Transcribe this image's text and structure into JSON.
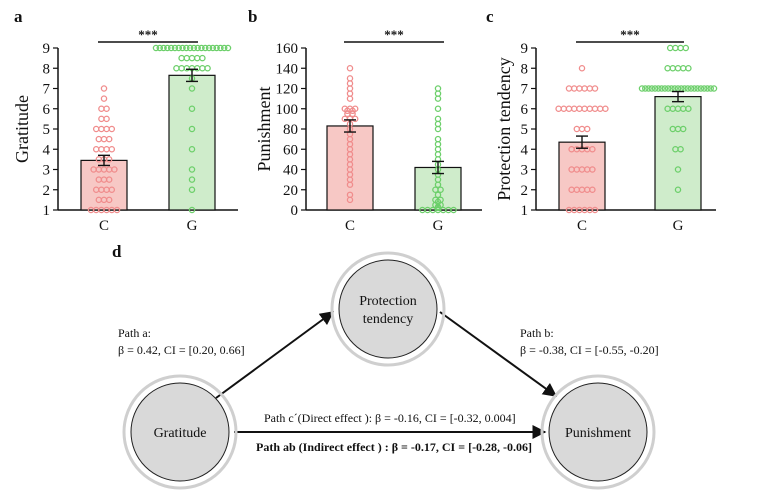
{
  "colors": {
    "c_fill": "#f7c8c5",
    "c_dot": "#f08c8c",
    "g_fill": "#cfeccb",
    "g_dot": "#6ccf6a",
    "node_fill": "#d9d9d9",
    "node_ring": "#cfcfcf"
  },
  "chart_data": [
    {
      "panel": "a",
      "type": "bar",
      "categories": [
        "C",
        "G"
      ],
      "values": [
        3.45,
        7.65
      ],
      "errors": [
        0.25,
        0.3
      ],
      "ylabel": "Gratitude",
      "ylim": [
        1,
        9
      ],
      "yticks": [
        "1",
        "2",
        "3",
        "4",
        "5",
        "6",
        "7",
        "8",
        "9"
      ],
      "significance": "***",
      "points": [
        [
          1,
          1,
          1,
          1,
          1,
          1,
          1.5,
          1.5,
          1.5,
          2,
          2,
          2,
          2,
          2.5,
          2.5,
          2.5,
          3,
          3,
          3,
          3,
          3,
          3.5,
          3.5,
          3.5,
          4,
          4,
          4,
          4,
          4.5,
          4.5,
          4.5,
          5,
          5,
          5,
          5,
          5.5,
          5.5,
          6,
          6,
          6.5,
          7
        ],
        [
          1,
          2,
          2.5,
          3,
          4,
          5,
          6,
          7,
          7.5,
          8,
          8,
          8,
          8,
          8,
          8,
          8,
          8.5,
          8.5,
          8.5,
          8.5,
          8.5,
          9,
          9,
          9,
          9,
          9,
          9,
          9,
          9,
          9,
          9,
          9,
          9,
          9,
          9,
          9,
          9,
          9,
          9,
          9,
          9
        ]
      ]
    },
    {
      "panel": "b",
      "type": "bar",
      "categories": [
        "C",
        "G"
      ],
      "values": [
        83,
        42
      ],
      "errors": [
        6,
        6
      ],
      "ylabel": "Punishment",
      "ylim": [
        0,
        160
      ],
      "yticks": [
        "0",
        "20",
        "40",
        "60",
        "80",
        "100",
        "120",
        "140",
        "160"
      ],
      "significance": "***",
      "points": [
        [
          10,
          15,
          25,
          30,
          35,
          40,
          45,
          50,
          55,
          60,
          65,
          70,
          75,
          80,
          85,
          90,
          90,
          90,
          95,
          95,
          98,
          98,
          100,
          100,
          100,
          110,
          115,
          120,
          125,
          130,
          140
        ],
        [
          0,
          0,
          0,
          0,
          0,
          0,
          0,
          2,
          3,
          5,
          5,
          8,
          10,
          10,
          15,
          20,
          20,
          25,
          30,
          35,
          40,
          45,
          50,
          55,
          60,
          65,
          70,
          80,
          85,
          90,
          100,
          110,
          115,
          120
        ]
      ]
    },
    {
      "panel": "c",
      "type": "bar",
      "categories": [
        "C",
        "G"
      ],
      "values": [
        4.35,
        6.6
      ],
      "errors": [
        0.3,
        0.25
      ],
      "ylabel": "Protection tendency",
      "ylim": [
        1,
        9
      ],
      "yticks": [
        "1",
        "2",
        "3",
        "4",
        "5",
        "6",
        "7",
        "8",
        "9"
      ],
      "significance": "***",
      "points": [
        [
          1,
          1,
          1,
          1,
          1,
          1,
          2,
          2,
          2,
          2,
          2,
          3,
          3,
          3,
          3,
          3,
          4,
          4,
          4,
          4,
          4,
          5,
          5,
          5,
          6,
          6,
          6,
          6,
          6,
          6,
          6,
          6,
          6,
          6,
          7,
          7,
          7,
          7,
          7,
          7,
          8
        ],
        [
          2,
          3,
          4,
          4,
          5,
          5,
          5,
          6,
          6,
          6,
          6,
          6,
          7,
          7,
          7,
          7,
          7,
          7,
          7,
          7,
          7,
          7,
          7,
          7,
          7,
          7,
          7,
          7,
          7,
          7,
          7,
          7,
          7,
          7,
          7,
          8,
          8,
          8,
          8,
          8,
          9,
          9,
          9,
          9
        ]
      ]
    }
  ],
  "mediation": {
    "panel": "d",
    "nodes": {
      "x": "Gratitude",
      "m_line1": "Protection",
      "m_line2": "tendency",
      "y": "Punishment"
    },
    "path_a_title": "Path a:",
    "path_a_stats": "β = 0.42, CI = [0.20, 0.66]",
    "path_b_title": "Path b:",
    "path_b_stats": "β = -0.38, CI = [-0.55, -0.20]",
    "path_c": "Path c´(Direct effect ): β = -0.16, CI = [-0.32, 0.004]",
    "path_ab": "Path ab (Indirect effect ) : β = -0.17, CI = [-0.28, -0.06]"
  }
}
